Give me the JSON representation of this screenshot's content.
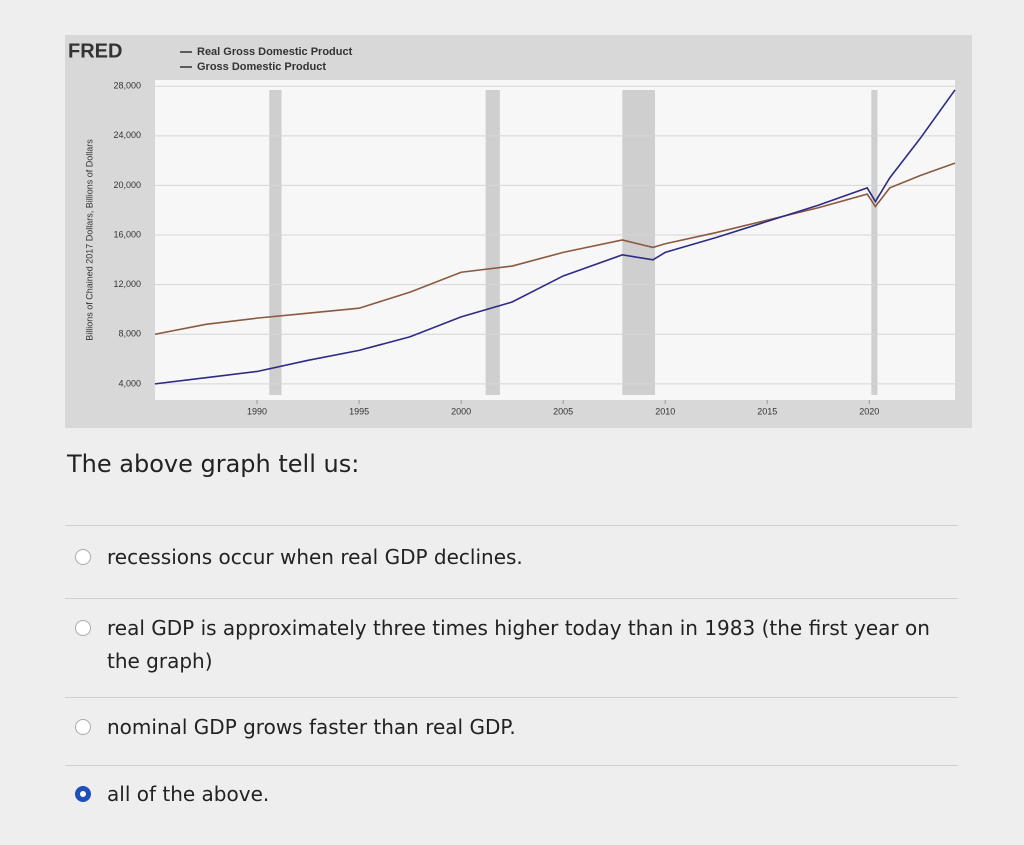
{
  "chart_data": {
    "type": "line",
    "brand": "FRED",
    "y_axis_label": "Billions of Chained 2017 Dollars, Billions of Dollars",
    "x": [
      1985,
      1987.5,
      1990,
      1992.5,
      1995,
      1997.5,
      2000,
      2002.5,
      2005,
      2007.9,
      2009.4,
      2010,
      2012.5,
      2015,
      2017.5,
      2019.9,
      2020.3,
      2021,
      2022.5,
      2024.2
    ],
    "series": [
      {
        "name": "Real Gross Domestic Product",
        "color": "#8a5a40",
        "values": [
          8000,
          8800,
          9300,
          9700,
          10100,
          11400,
          13000,
          13500,
          14600,
          15600,
          15000,
          15300,
          16200,
          17200,
          18200,
          19300,
          18300,
          19800,
          20800,
          21800
        ]
      },
      {
        "name": "Gross Domestic Product",
        "color": "#2e2b86",
        "values": [
          4000,
          4500,
          5000,
          5900,
          6700,
          7800,
          9400,
          10600,
          12700,
          14400,
          14000,
          14600,
          15800,
          17100,
          18400,
          19800,
          18700,
          20600,
          23800,
          27700
        ]
      }
    ],
    "recessions": [
      [
        1990.6,
        1991.2
      ],
      [
        2001.2,
        2001.9
      ],
      [
        2007.9,
        2009.5
      ],
      [
        2020.1,
        2020.4
      ]
    ],
    "xlim": [
      1985,
      2024.2
    ],
    "xticks": [
      1990,
      1995,
      2000,
      2005,
      2010,
      2015,
      2020
    ],
    "ylim": [
      2700,
      28500
    ],
    "yticks": [
      {
        "value": 4000,
        "label": "4,000"
      },
      {
        "value": 8000,
        "label": "8,000"
      },
      {
        "value": 12000,
        "label": "12,000"
      },
      {
        "value": 16000,
        "label": "16,000"
      },
      {
        "value": 20000,
        "label": "20,000"
      },
      {
        "value": 24000,
        "label": "24,000"
      },
      {
        "value": 28000,
        "label": "28,000"
      }
    ],
    "grid": true
  },
  "question": {
    "prompt": "The above graph tell us:",
    "options": [
      "recessions occur when real GDP declines.",
      "real GDP is approximately three times higher today than in 1983 (the first year on the graph)",
      "nominal GDP grows faster than real GDP.",
      "all of the above."
    ],
    "selected": 3
  }
}
